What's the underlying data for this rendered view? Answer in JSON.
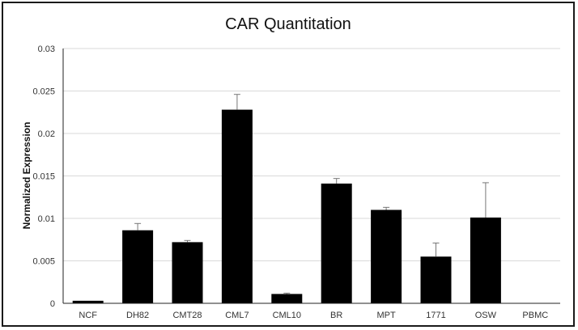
{
  "chart_data": {
    "type": "bar",
    "title": "CAR Quantitation",
    "xlabel": "",
    "ylabel": "Normalized Expression",
    "ylim": [
      0,
      0.03
    ],
    "yticks": [
      0,
      0.005,
      0.01,
      0.015,
      0.02,
      0.025,
      0.03
    ],
    "ytick_labels": [
      "0",
      "0.005",
      "0.01",
      "0.015",
      "0.02",
      "0.025",
      "0.03"
    ],
    "categories": [
      "NCF",
      "DH82",
      "CMT28",
      "CML7",
      "CML10",
      "BR",
      "MPT",
      "1771",
      "OSW",
      "PBMC"
    ],
    "values": [
      0.0003,
      0.0086,
      0.0072,
      0.0228,
      0.0011,
      0.0141,
      0.011,
      0.0055,
      0.0101,
      0.0
    ],
    "errors": [
      0.0,
      0.0008,
      0.0002,
      0.0018,
      0.0001,
      0.0006,
      0.0003,
      0.0016,
      0.0041,
      0.0
    ],
    "grid": true,
    "legend": "none",
    "bar_color": "#000000",
    "grid_color": "#d9d9d9",
    "axis_color": "#222222"
  }
}
